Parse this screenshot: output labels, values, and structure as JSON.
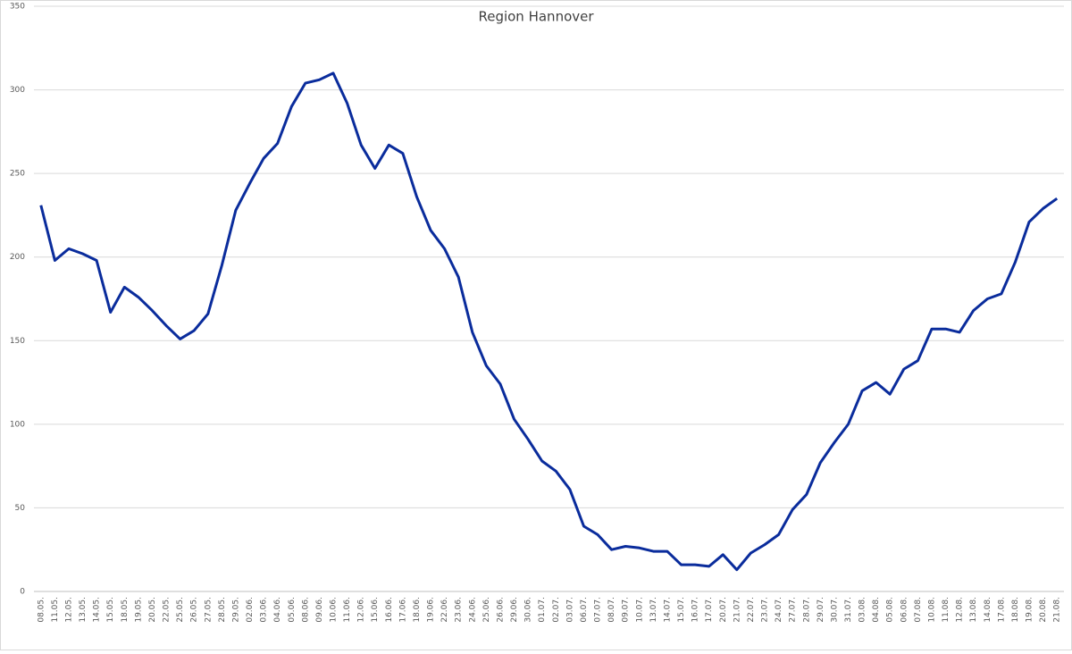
{
  "chart_data": {
    "type": "line",
    "title": "Region Hannover",
    "categories": [
      "08.05.",
      "11.05.",
      "12.05.",
      "13.05.",
      "14.05.",
      "15.05.",
      "18.05.",
      "19.05.",
      "20.05.",
      "22.05.",
      "25.05.",
      "26.05.",
      "27.05.",
      "28.05.",
      "29.05.",
      "02.06.",
      "03.06.",
      "04.06.",
      "05.06.",
      "08.06.",
      "09.06.",
      "10.06.",
      "11.06.",
      "12.06.",
      "15.06.",
      "16.06.",
      "17.06.",
      "18.06.",
      "19.06.",
      "22.06.",
      "23.06.",
      "24.06.",
      "25.06.",
      "26.06.",
      "29.06.",
      "30.06.",
      "01.07.",
      "02.07.",
      "03.07.",
      "06.07.",
      "07.07.",
      "08.07.",
      "09.07.",
      "10.07.",
      "13.07.",
      "14.07.",
      "15.07.",
      "16.07.",
      "17.07.",
      "20.07.",
      "21.07.",
      "22.07.",
      "23.07.",
      "24.07.",
      "27.07.",
      "28.07.",
      "29.07.",
      "30.07.",
      "31.07.",
      "03.08.",
      "04.08.",
      "05.08.",
      "06.08.",
      "07.08.",
      "10.08.",
      "11.08.",
      "12.08.",
      "13.08.",
      "14.08.",
      "17.08.",
      "18.08.",
      "19.08.",
      "20.08.",
      "21.08."
    ],
    "values": [
      231,
      198,
      205,
      202,
      198,
      167,
      182,
      176,
      168,
      159,
      151,
      156,
      166,
      195,
      228,
      244,
      259,
      268,
      290,
      304,
      306,
      310,
      292,
      267,
      253,
      267,
      262,
      236,
      216,
      205,
      188,
      155,
      135,
      124,
      103,
      91,
      78,
      72,
      61,
      39,
      34,
      25,
      27,
      26,
      24,
      24,
      16,
      16,
      15,
      22,
      13,
      23,
      28,
      34,
      49,
      58,
      77,
      89,
      100,
      120,
      125,
      118,
      133,
      138,
      157,
      157,
      155,
      168,
      175,
      178,
      197,
      221,
      229,
      235
    ],
    "color": "#0a2c9c",
    "ylim": [
      0,
      350
    ],
    "yticks": [
      0,
      50,
      100,
      150,
      200,
      250,
      300,
      350
    ],
    "grid": true
  }
}
